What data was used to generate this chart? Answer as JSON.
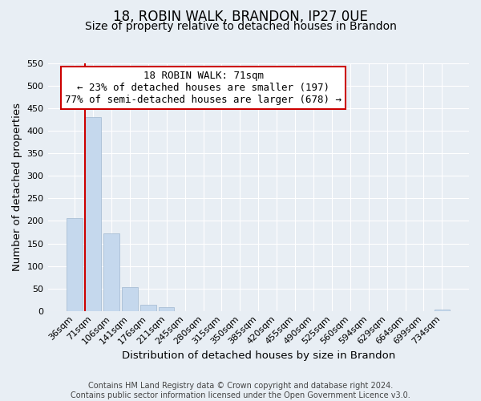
{
  "title": "18, ROBIN WALK, BRANDON, IP27 0UE",
  "subtitle": "Size of property relative to detached houses in Brandon",
  "xlabel": "Distribution of detached houses by size in Brandon",
  "ylabel": "Number of detached properties",
  "footer_lines": [
    "Contains HM Land Registry data © Crown copyright and database right 2024.",
    "Contains public sector information licensed under the Open Government Licence v3.0."
  ],
  "categories": [
    "36sqm",
    "71sqm",
    "106sqm",
    "141sqm",
    "176sqm",
    "211sqm",
    "245sqm",
    "280sqm",
    "315sqm",
    "350sqm",
    "385sqm",
    "420sqm",
    "455sqm",
    "490sqm",
    "525sqm",
    "560sqm",
    "594sqm",
    "629sqm",
    "664sqm",
    "699sqm",
    "734sqm"
  ],
  "values": [
    207,
    430,
    172,
    53,
    13,
    9,
    0,
    0,
    0,
    0,
    0,
    0,
    0,
    0,
    0,
    0,
    0,
    0,
    0,
    0,
    3
  ],
  "bar_color": "#c5d8ed",
  "bar_edge_color": "#a0b8d0",
  "highlight_bar_index": 1,
  "highlight_line_color": "#cc0000",
  "annotation_line1": "18 ROBIN WALK: 71sqm",
  "annotation_line2": "← 23% of detached houses are smaller (197)",
  "annotation_line3": "77% of semi-detached houses are larger (678) →",
  "ylim": [
    0,
    550
  ],
  "yticks": [
    0,
    50,
    100,
    150,
    200,
    250,
    300,
    350,
    400,
    450,
    500,
    550
  ],
  "bg_color": "#e8eef4",
  "plot_bg_color": "#e8eef4",
  "grid_color": "#ffffff",
  "title_fontsize": 12,
  "subtitle_fontsize": 10,
  "axis_label_fontsize": 9.5,
  "tick_fontsize": 8,
  "annotation_fontsize": 9,
  "footer_fontsize": 7
}
